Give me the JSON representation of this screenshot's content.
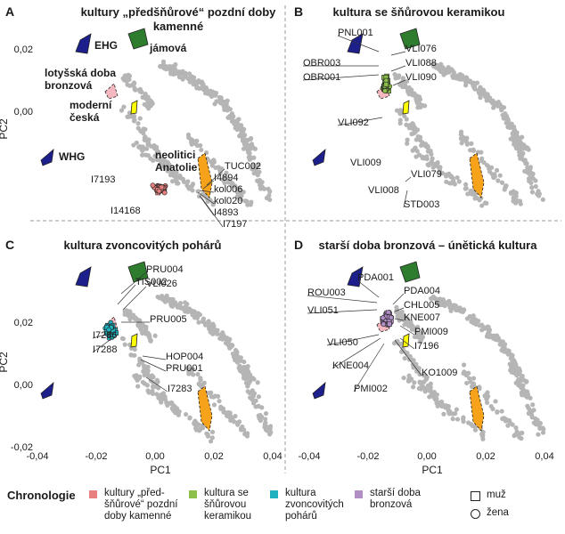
{
  "chart_data": [
    {
      "type": "scatter",
      "panel": "A",
      "title": "kultury „předšňůrové“ pozdní doby kamenné",
      "ylabel": "PC2",
      "xlabel": "",
      "xlim": [
        -0.05,
        0.045
      ],
      "ylim": [
        -0.04,
        0.028
      ],
      "yticks": [
        "0,02",
        "0,00"
      ],
      "clusters": [
        {
          "name": "EHG",
          "color": "#1c1f8c"
        },
        {
          "name": "jámová",
          "color": "#2e7d2e"
        },
        {
          "name": "lotyšská doba bronzová",
          "color": "#f5b7c0"
        },
        {
          "name": "moderní česká",
          "color": "#ffff00"
        },
        {
          "name": "WHG",
          "color": "#1c1f8c"
        },
        {
          "name": "neolitici Anatolie",
          "color": "#f7a21b"
        }
      ],
      "labels": [
        "TUC002",
        "I4894",
        "kol006",
        "kol020",
        "I4893",
        "I7197",
        "I7193",
        "I14168"
      ]
    },
    {
      "type": "scatter",
      "panel": "B",
      "title": "kultura se šňůrovou keramikou",
      "labels": [
        "PNL001",
        "VLI076",
        "OBR003",
        "VLI088",
        "OBR001",
        "VLI090",
        "VLI092",
        "VLI009",
        "VLI079",
        "VLI008",
        "STD003"
      ]
    },
    {
      "type": "scatter",
      "panel": "C",
      "title": "kultura zvoncovitých pohárů",
      "ylabel": "PC2",
      "xlabel": "PC1",
      "yticks": [
        "0,02",
        "0,00",
        "-0,02"
      ],
      "xticks": [
        "-0,04",
        "-0,02",
        "0,00",
        "0,02",
        "0,04"
      ],
      "labels": [
        "TIS002",
        "PRU004",
        "VLI026",
        "PRU005",
        "I7286",
        "I7288",
        "HOP004",
        "PRU001",
        "I7283"
      ]
    },
    {
      "type": "scatter",
      "panel": "D",
      "title": "starší doba bronzová – únětická kultura",
      "xlabel": "PC1",
      "xticks": [
        "-0,04",
        "-0,02",
        "0,00",
        "0,02",
        "0,04"
      ],
      "labels": [
        "PDA001",
        "ROU003",
        "PDA004",
        "VLI051",
        "CHL005",
        "KNE007",
        "PMI009",
        "VLI050",
        "I7196",
        "KNE004",
        "KO1009",
        "PMI002"
      ]
    }
  ],
  "legend": {
    "title": "Chronologie",
    "groups": [
      {
        "label": "kultury „před-šňůrové“ pozdní doby kamenné",
        "color": "#e8807f"
      },
      {
        "label": "kultura se šňůrovou keramikou",
        "color": "#8cc04a"
      },
      {
        "label": "kultura zvoncovitých pohárů",
        "color": "#1fb1bd"
      },
      {
        "label": "starší doba bronzová",
        "color": "#b18fc6"
      }
    ],
    "shapes": [
      {
        "label": "muž",
        "shape": "square"
      },
      {
        "label": "žena",
        "shape": "circle"
      }
    ]
  },
  "panel_letters": [
    "A",
    "B",
    "C",
    "D"
  ],
  "colors": {
    "background_points": "#b5b5b5",
    "divider": "#9a9a9a"
  }
}
